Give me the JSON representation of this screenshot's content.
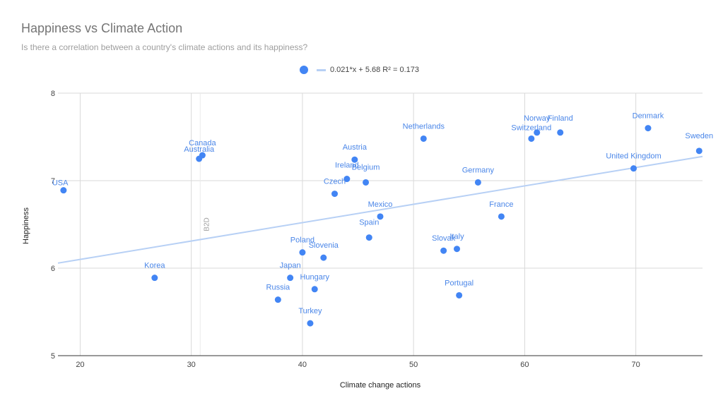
{
  "chart_data": {
    "type": "scatter",
    "title": "Happiness vs Climate Action",
    "subtitle": "Is there a correlation between a country's climate actions and its happiness?",
    "xlabel": "Climate change actions",
    "ylabel": "Happiness",
    "xlim": [
      18,
      76
    ],
    "ylim": [
      5,
      8
    ],
    "xticks": [
      20,
      30,
      40,
      50,
      60,
      70
    ],
    "yticks": [
      5,
      6,
      7,
      8
    ],
    "grid": true,
    "legend": {
      "position": "top-center",
      "trendline_label": "0.021*x + 5.68 R² = 0.173"
    },
    "trendline": {
      "slope": 0.021,
      "intercept": 5.68,
      "r2": 0.173
    },
    "annotation": {
      "label": "B2D",
      "x": 30.8
    },
    "colors": {
      "points": "#4285f4",
      "labels": "#4a86e8",
      "trendline": "#b7d0f5",
      "grid": "#d9d9d9"
    },
    "points": [
      {
        "label": "USA",
        "x": 18.5,
        "y": 6.89
      },
      {
        "label": "Korea",
        "x": 26.7,
        "y": 5.89
      },
      {
        "label": "Australia",
        "x": 30.7,
        "y": 7.25
      },
      {
        "label": "Canada",
        "x": 31.0,
        "y": 7.29
      },
      {
        "label": "Russia",
        "x": 37.8,
        "y": 5.64
      },
      {
        "label": "Japan",
        "x": 38.9,
        "y": 5.89
      },
      {
        "label": "Poland",
        "x": 40.0,
        "y": 6.18
      },
      {
        "label": "Turkey",
        "x": 40.7,
        "y": 5.37
      },
      {
        "label": "Hungary",
        "x": 41.1,
        "y": 5.76
      },
      {
        "label": "Slovenia",
        "x": 41.9,
        "y": 6.12
      },
      {
        "label": "Czech",
        "x": 42.9,
        "y": 6.85
      },
      {
        "label": "Ireland",
        "x": 44.0,
        "y": 7.02
      },
      {
        "label": "Austria",
        "x": 44.7,
        "y": 7.24
      },
      {
        "label": "Belgium",
        "x": 45.7,
        "y": 6.98
      },
      {
        "label": "Spain",
        "x": 46.0,
        "y": 6.35
      },
      {
        "label": "Mexico",
        "x": 47.0,
        "y": 6.59
      },
      {
        "label": "Netherlands",
        "x": 50.9,
        "y": 7.48
      },
      {
        "label": "Slovak",
        "x": 52.7,
        "y": 6.2
      },
      {
        "label": "Italy",
        "x": 53.9,
        "y": 6.22
      },
      {
        "label": "Portugal",
        "x": 54.1,
        "y": 5.69
      },
      {
        "label": "Germany",
        "x": 55.8,
        "y": 6.98
      },
      {
        "label": "France",
        "x": 57.9,
        "y": 6.59
      },
      {
        "label": "Switzerland",
        "x": 60.6,
        "y": 7.48
      },
      {
        "label": "Norway",
        "x": 61.1,
        "y": 7.55
      },
      {
        "label": "Finland",
        "x": 63.2,
        "y": 7.55
      },
      {
        "label": "United Kingdom",
        "x": 69.8,
        "y": 7.14
      },
      {
        "label": "Denmark",
        "x": 71.1,
        "y": 7.6
      },
      {
        "label": "Sweden",
        "x": 75.7,
        "y": 7.34
      }
    ]
  }
}
